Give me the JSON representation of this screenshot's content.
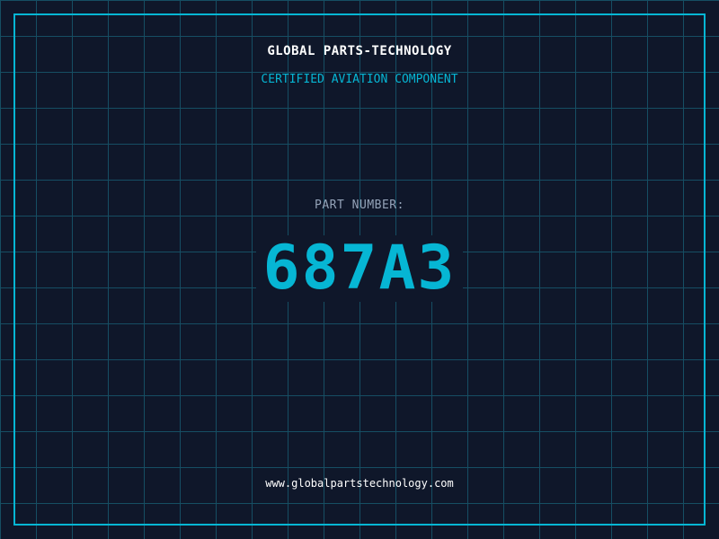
{
  "header": {
    "company": "GLOBAL PARTS-TECHNOLOGY",
    "subtitle": "CERTIFIED AVIATION COMPONENT"
  },
  "part": {
    "label": "PART NUMBER:",
    "number": "687A3"
  },
  "footer": {
    "url": "www.globalpartstechnology.com"
  },
  "colors": {
    "background": "#0f172a",
    "accent": "#06b6d4",
    "grid": "#164e63",
    "label": "#94a3b8"
  }
}
